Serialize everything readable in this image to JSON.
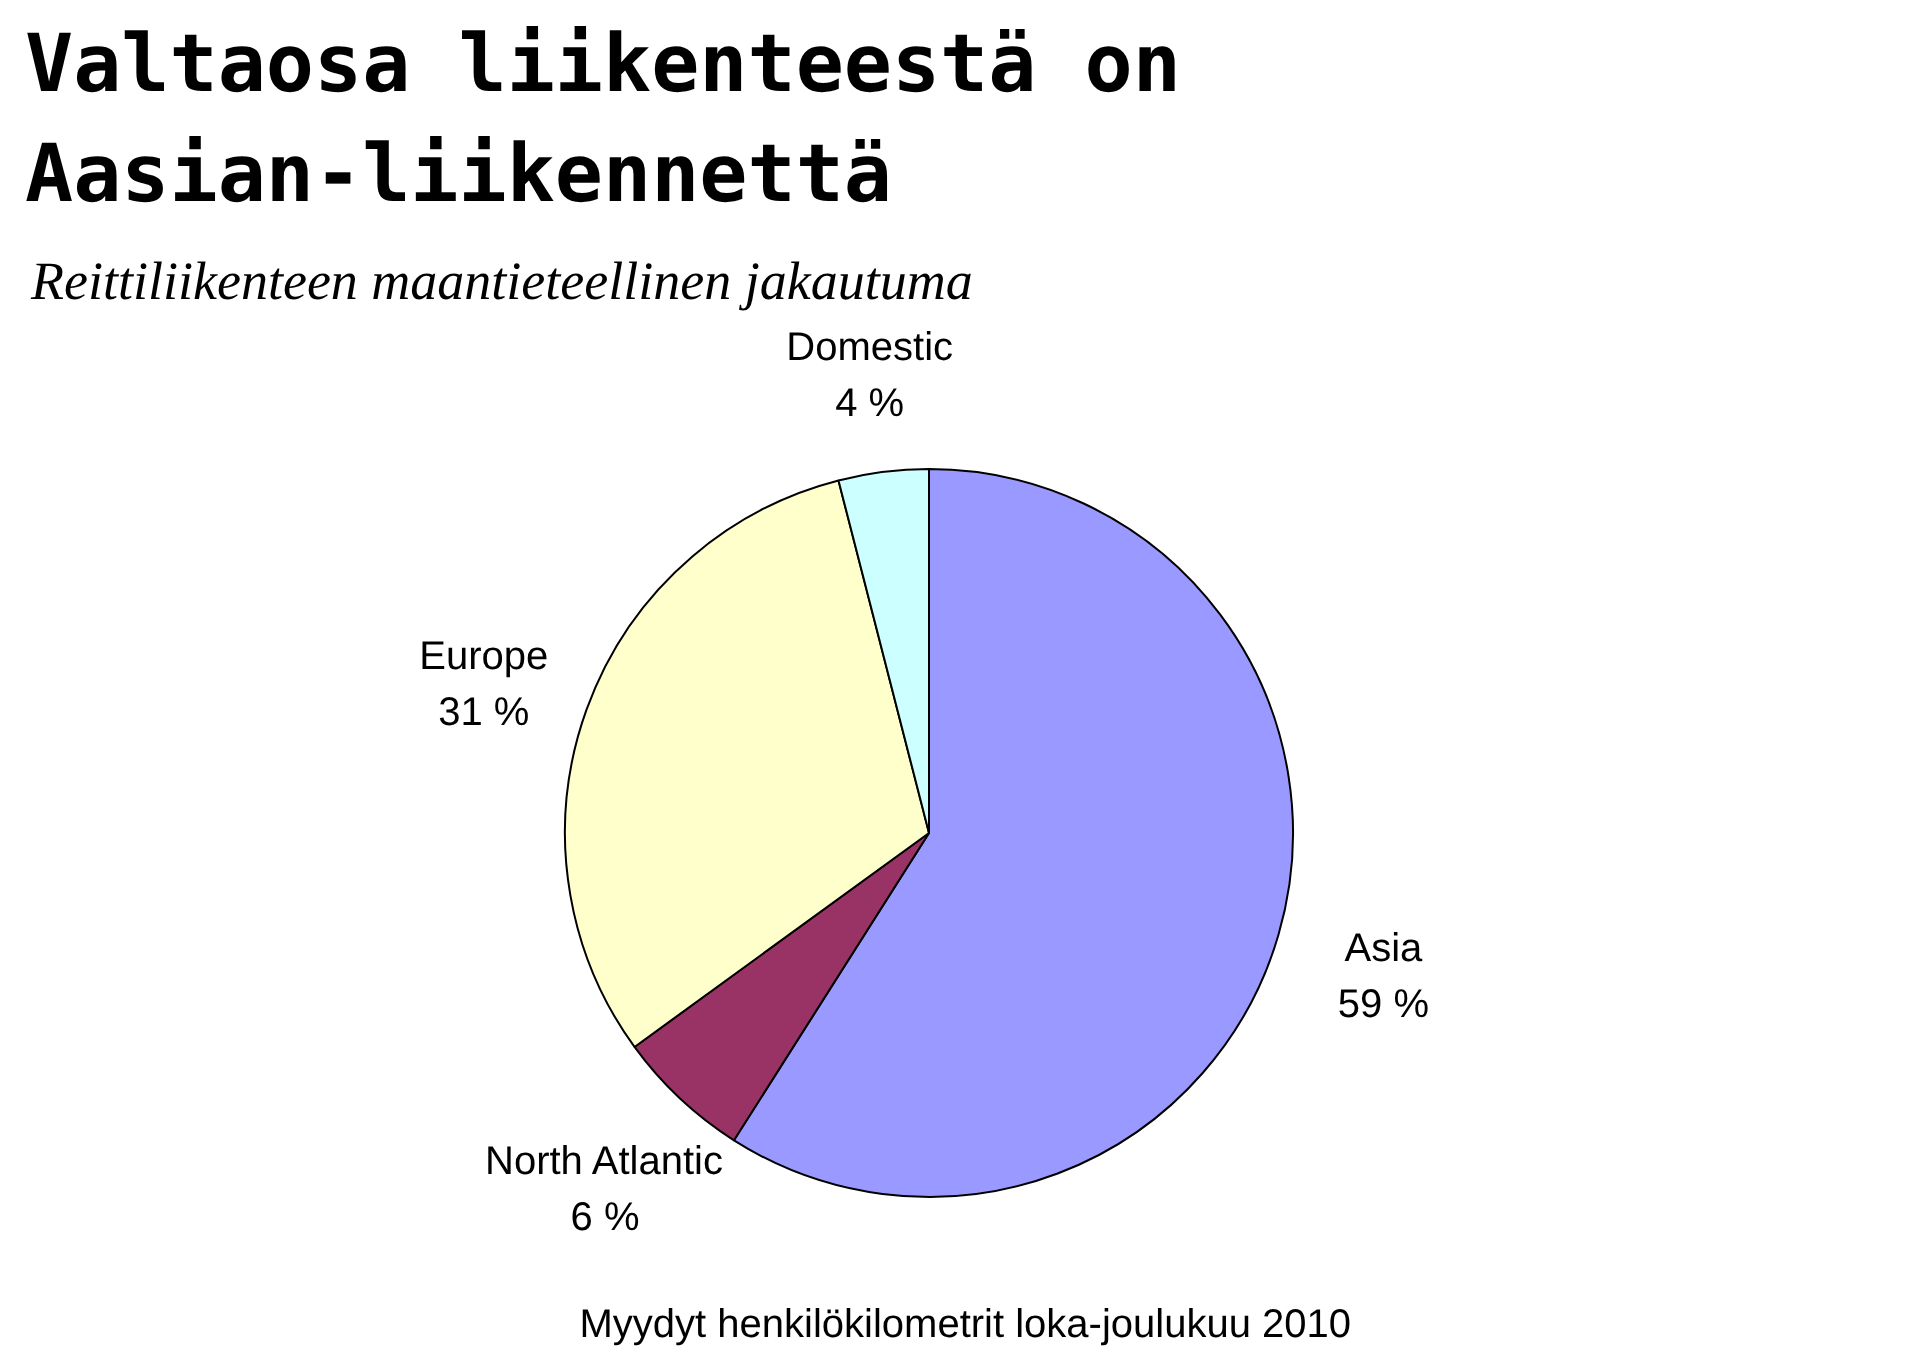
{
  "chart_data": {
    "type": "pie",
    "title": "Valtaosa liikenteestä on\nAasian-liikennettä",
    "subtitle": "Reittiliikenteen maantieteellinen jakautuma",
    "categories": [
      "Asia",
      "North Atlantic",
      "Europe",
      "Domestic"
    ],
    "values": [
      59,
      6,
      31,
      4
    ],
    "colors": [
      "#9999ff",
      "#993366",
      "#ffffcc",
      "#ccffff"
    ],
    "value_labels": [
      "59 %",
      "6 %",
      "31 %",
      "4 %"
    ],
    "annotations": [
      "Myydyt henkilökilometrit loka-joulukuu 2010"
    ]
  }
}
